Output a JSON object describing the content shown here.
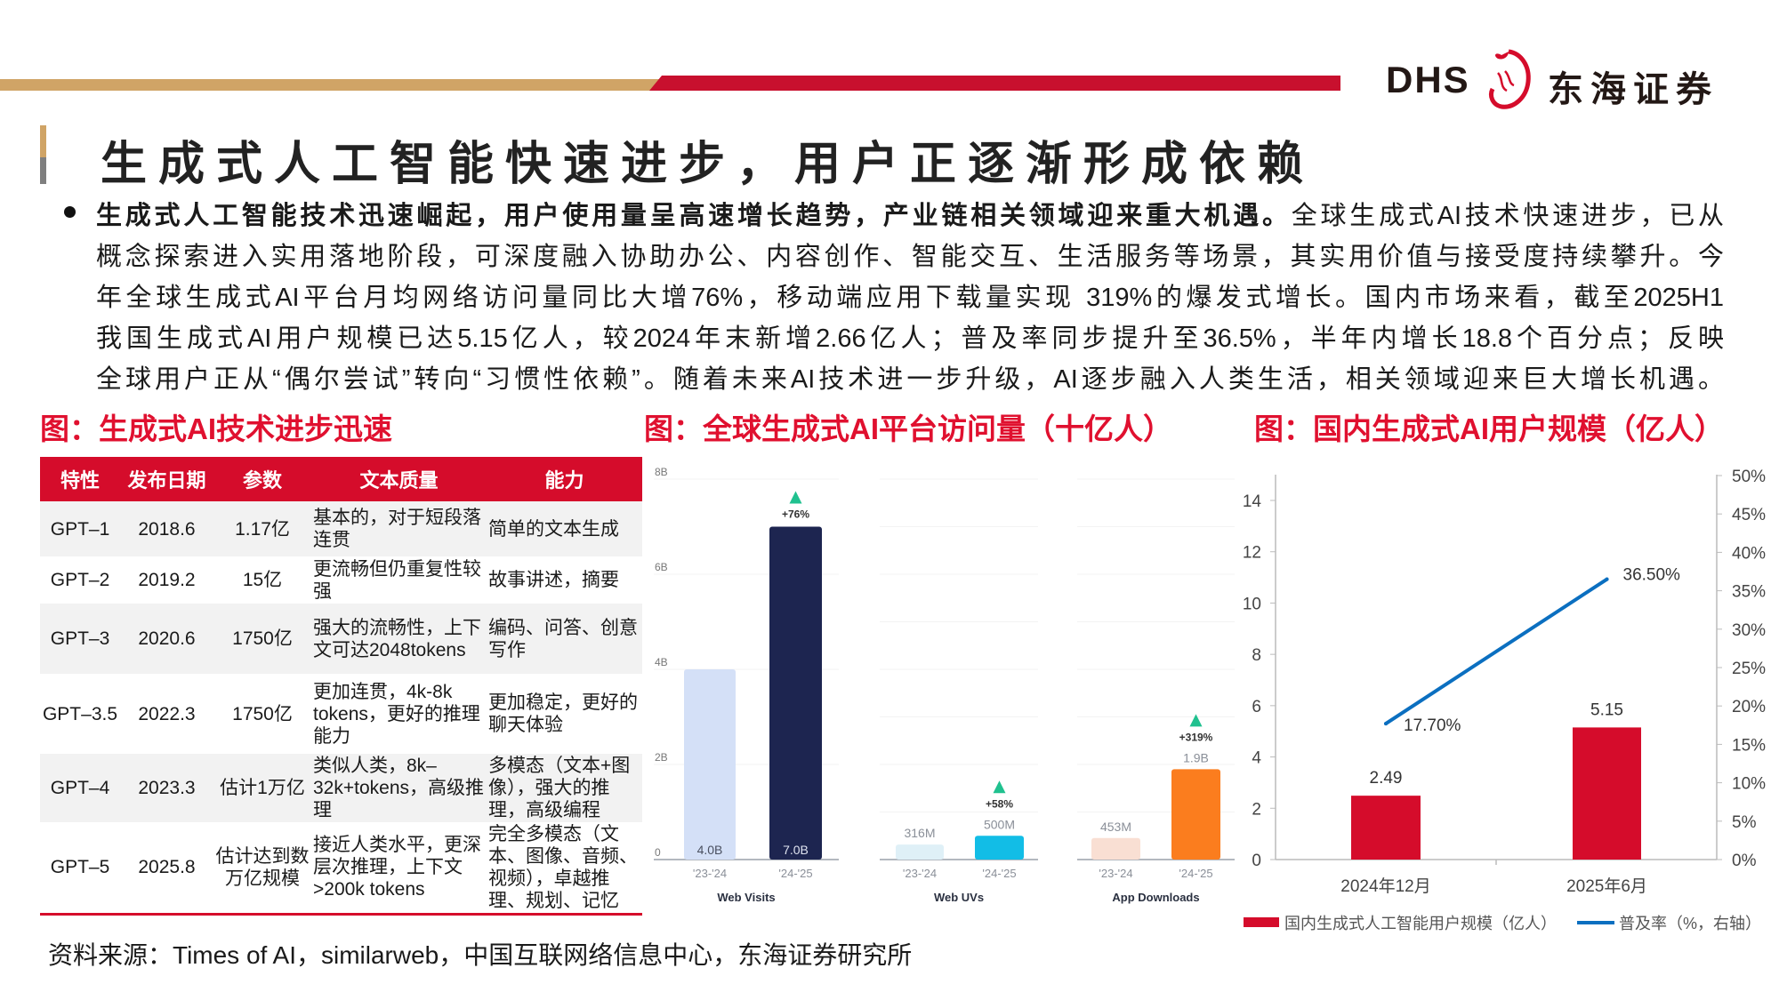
{
  "header": {
    "logo_latin": "DHS",
    "logo_cn": "东海证券",
    "brand_colors": {
      "gold": "#d0a466",
      "red": "#c8102e"
    }
  },
  "title": "生成式人工智能快速进步，用户正逐渐形成依赖",
  "paragraph": {
    "lines": [
      {
        "bold": "生成式人工智能技术迅速崛起，用户使用量呈高速增长趋势，产业链相关领域迎来重大机遇。",
        "text": "全球生成式AI技术快速进步，已从"
      },
      {
        "bold": "",
        "text": "概念探索进入实用落地阶段，可深度融入协助办公、内容创作、智能交互、生活服务等场景，其实用价值与接受度持续攀升。今"
      },
      {
        "bold": "",
        "text": "年全球生成式AI平台月均网络访问量同比大增76%，移动端应用下载量实现 319%的爆发式增长。国内市场来看，截至2025H1"
      },
      {
        "bold": "",
        "text": "我国生成式AI用户规模已达5.15亿人，较2024年末新增2.66亿人；普及率同步提升至36.5%，半年内增长18.8个百分点；反映"
      },
      {
        "bold": "",
        "text": "全球用户正从“偶尔尝试”转向“习惯性依赖”。随着未来AI技术进一步升级，AI逐步融入人类生活，相关领域迎来巨大增长机遇。"
      }
    ]
  },
  "captions": {
    "fig1": "图：生成式AI技术进步迅速",
    "fig2": "图：全球生成式AI平台访问量（十亿人）",
    "fig3": "图：国内生成式AI用户规模（亿人）"
  },
  "table": {
    "headers": [
      "特性",
      "发布日期",
      "参数",
      "文本质量",
      "能力"
    ],
    "rows": [
      [
        "GPT–1",
        "2018.6",
        "1.17亿",
        "基本的，对于短段落连贯",
        "简单的文本生成"
      ],
      [
        "GPT–2",
        "2019.2",
        "15亿",
        "更流畅但仍重复性较强",
        "故事讲述，摘要"
      ],
      [
        "GPT–3",
        "2020.6",
        "1750亿",
        "强大的流畅性，上下文可达2048tokens",
        "编码、问答、创意写作"
      ],
      [
        "GPT–3.5",
        "2022.3",
        "1750亿",
        "更加连贯，4k-8k tokens，更好的推理能力",
        "更加稳定，更好的聊天体验"
      ],
      [
        "GPT–4",
        "2023.3",
        "估计1万亿",
        "类似人类，8k–32k+tokens，高级推理",
        "多模态（文本+图像），强大的推理，高级编程"
      ],
      [
        "GPT–5",
        "2025.8",
        "估计达到数万亿规模",
        "接近人类水平，更深层次推理，上下文>200k tokens",
        "完全多模态（文本、图像、音频、视频），卓越推理、规划、记忆"
      ]
    ]
  },
  "chart_data": [
    {
      "type": "bar",
      "y_ticks": [
        "0",
        "2B",
        "4B",
        "6B",
        "8B"
      ],
      "ylim": [
        0,
        8
      ],
      "unit": "B",
      "grid": true,
      "increase_color": "#20c18f",
      "panels": [
        {
          "title": "Web Visits",
          "categories": [
            "'23-'24",
            "'24-'25"
          ],
          "values": [
            4.0,
            7.0
          ],
          "labels": [
            "4.0B",
            "7.0B"
          ],
          "change": "+76%",
          "colors": [
            "#d4e0f7",
            "#1d2550"
          ],
          "label_inside": true
        },
        {
          "title": "Web UVs",
          "categories": [
            "'23-'24",
            "'24-'25"
          ],
          "values": [
            0.316,
            0.5
          ],
          "labels": [
            "316M",
            "500M"
          ],
          "change": "+58%",
          "colors": [
            "#dff0f7",
            "#12bde6"
          ],
          "label_inside": false
        },
        {
          "title": "App Downloads",
          "categories": [
            "'23-'24",
            "'24-'25"
          ],
          "values": [
            0.453,
            1.9
          ],
          "labels": [
            "453M",
            "1.9B"
          ],
          "change": "+319%",
          "colors": [
            "#f9dfd3",
            "#fb7d1e"
          ],
          "label_inside": false
        }
      ]
    },
    {
      "type": "bar+line",
      "categories": [
        "2024年12月",
        "2025年6月"
      ],
      "left_axis": {
        "ylim": [
          0,
          15
        ],
        "ticks": [
          "0",
          "2",
          "4",
          "6",
          "8",
          "10",
          "12",
          "14"
        ]
      },
      "right_axis": {
        "ylim": [
          0,
          50
        ],
        "ticks": [
          "0%",
          "5%",
          "10%",
          "15%",
          "20%",
          "25%",
          "30%",
          "35%",
          "40%",
          "45%",
          "50%"
        ]
      },
      "series": [
        {
          "name": "国内生成式人工智能用户规模（亿人）",
          "type": "bar",
          "axis": "left",
          "values": [
            2.49,
            5.15
          ],
          "labels": [
            "2.49",
            "5.15"
          ],
          "color": "#d50c2b"
        },
        {
          "name": "普及率（%，右轴）",
          "type": "line",
          "axis": "right",
          "values": [
            17.7,
            36.5
          ],
          "labels": [
            "17.70%",
            "36.50%"
          ],
          "color": "#0b6fc0"
        }
      ],
      "legend": "bottom"
    }
  ],
  "source": "资料来源：Times of AI，similarweb，中国互联网络信息中心，东海证券研究所"
}
